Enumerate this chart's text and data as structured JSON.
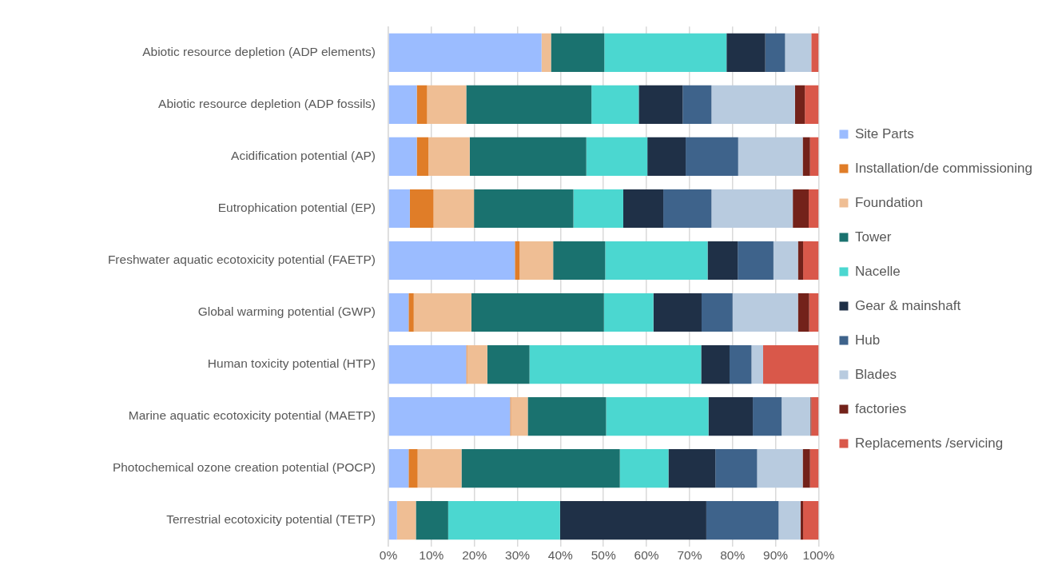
{
  "chart_data": {
    "type": "bar",
    "orientation": "horizontal",
    "stacked": true,
    "grid": "x",
    "legend": "right",
    "categories": [
      "Abiotic resource depletion (ADP elements)",
      "Abiotic resource depletion (ADP fossils)",
      "Acidification potential (AP)",
      "Eutrophication potential (EP)",
      "Freshwater aquatic ecotoxicity potential (FAETP)",
      "Global warming potential (GWP)",
      "Human toxicity potential (HTP)",
      "Marine aquatic ecotoxicity potential (MAETP)",
      "Photochemical ozone creation potential (POCP)",
      "Terrestrial ecotoxicity potential (TETP)"
    ],
    "xlim": [
      0,
      100
    ],
    "xticks": [
      {
        "value": 0,
        "label": "0%"
      },
      {
        "value": 10,
        "label": "10%"
      },
      {
        "value": 20,
        "label": "20%"
      },
      {
        "value": 30,
        "label": "30%"
      },
      {
        "value": 40,
        "label": "40%"
      },
      {
        "value": 50,
        "label": "50%"
      },
      {
        "value": 60,
        "label": "60%"
      },
      {
        "value": 70,
        "label": "70%"
      },
      {
        "value": 80,
        "label": "80%"
      },
      {
        "value": 90,
        "label": "90%"
      },
      {
        "value": 100,
        "label": "100%"
      }
    ],
    "series": [
      {
        "name": "Site Parts",
        "color": "#9bbcff",
        "values": [
          35.6,
          6.6,
          6.6,
          5.0,
          29.4,
          4.7,
          18.1,
          28.3,
          4.7,
          2.0
        ]
      },
      {
        "name": "Installation/de commissioning",
        "color": "#e07d28",
        "values": [
          0,
          2.4,
          2.7,
          5.5,
          1.1,
          1.2,
          0.2,
          0.2,
          2.1,
          0
        ]
      },
      {
        "name": "Foundation",
        "color": "#efbe94",
        "values": [
          2.2,
          9.1,
          9.6,
          9.4,
          7.8,
          13.4,
          4.7,
          3.9,
          10.2,
          4.4
        ]
      },
      {
        "name": "Tower",
        "color": "#1a726f",
        "values": [
          12.4,
          29.1,
          27.1,
          23.1,
          12.1,
          30.8,
          9.8,
          18.2,
          36.8,
          7.5
        ]
      },
      {
        "name": "Nacelle",
        "color": "#4bd7d0",
        "values": [
          28.4,
          11.0,
          14.2,
          11.6,
          23.8,
          11.5,
          39.9,
          23.8,
          11.3,
          26.0
        ]
      },
      {
        "name": "Gear & mainshaft",
        "color": "#1f3047",
        "values": [
          9.0,
          10.2,
          8.9,
          9.3,
          7.0,
          11.2,
          6.6,
          10.3,
          10.9,
          34.0
        ]
      },
      {
        "name": "Hub",
        "color": "#3e638b",
        "values": [
          4.6,
          6.7,
          12.2,
          11.2,
          8.3,
          7.2,
          5.1,
          6.7,
          9.7,
          16.8
        ]
      },
      {
        "name": "Blades",
        "color": "#b8cbdf",
        "values": [
          6.1,
          19.4,
          15.0,
          18.9,
          5.7,
          15.2,
          2.7,
          6.7,
          10.6,
          5.1
        ]
      },
      {
        "name": "factories",
        "color": "#73221a",
        "values": [
          0,
          2.3,
          1.7,
          3.7,
          1.2,
          2.6,
          0,
          0.2,
          1.7,
          0.6
        ]
      },
      {
        "name": "Replacements /servicing",
        "color": "#d9584a",
        "values": [
          1.7,
          3.2,
          2.0,
          2.3,
          3.6,
          2.2,
          12.9,
          1.7,
          2.0,
          3.6
        ]
      }
    ]
  }
}
